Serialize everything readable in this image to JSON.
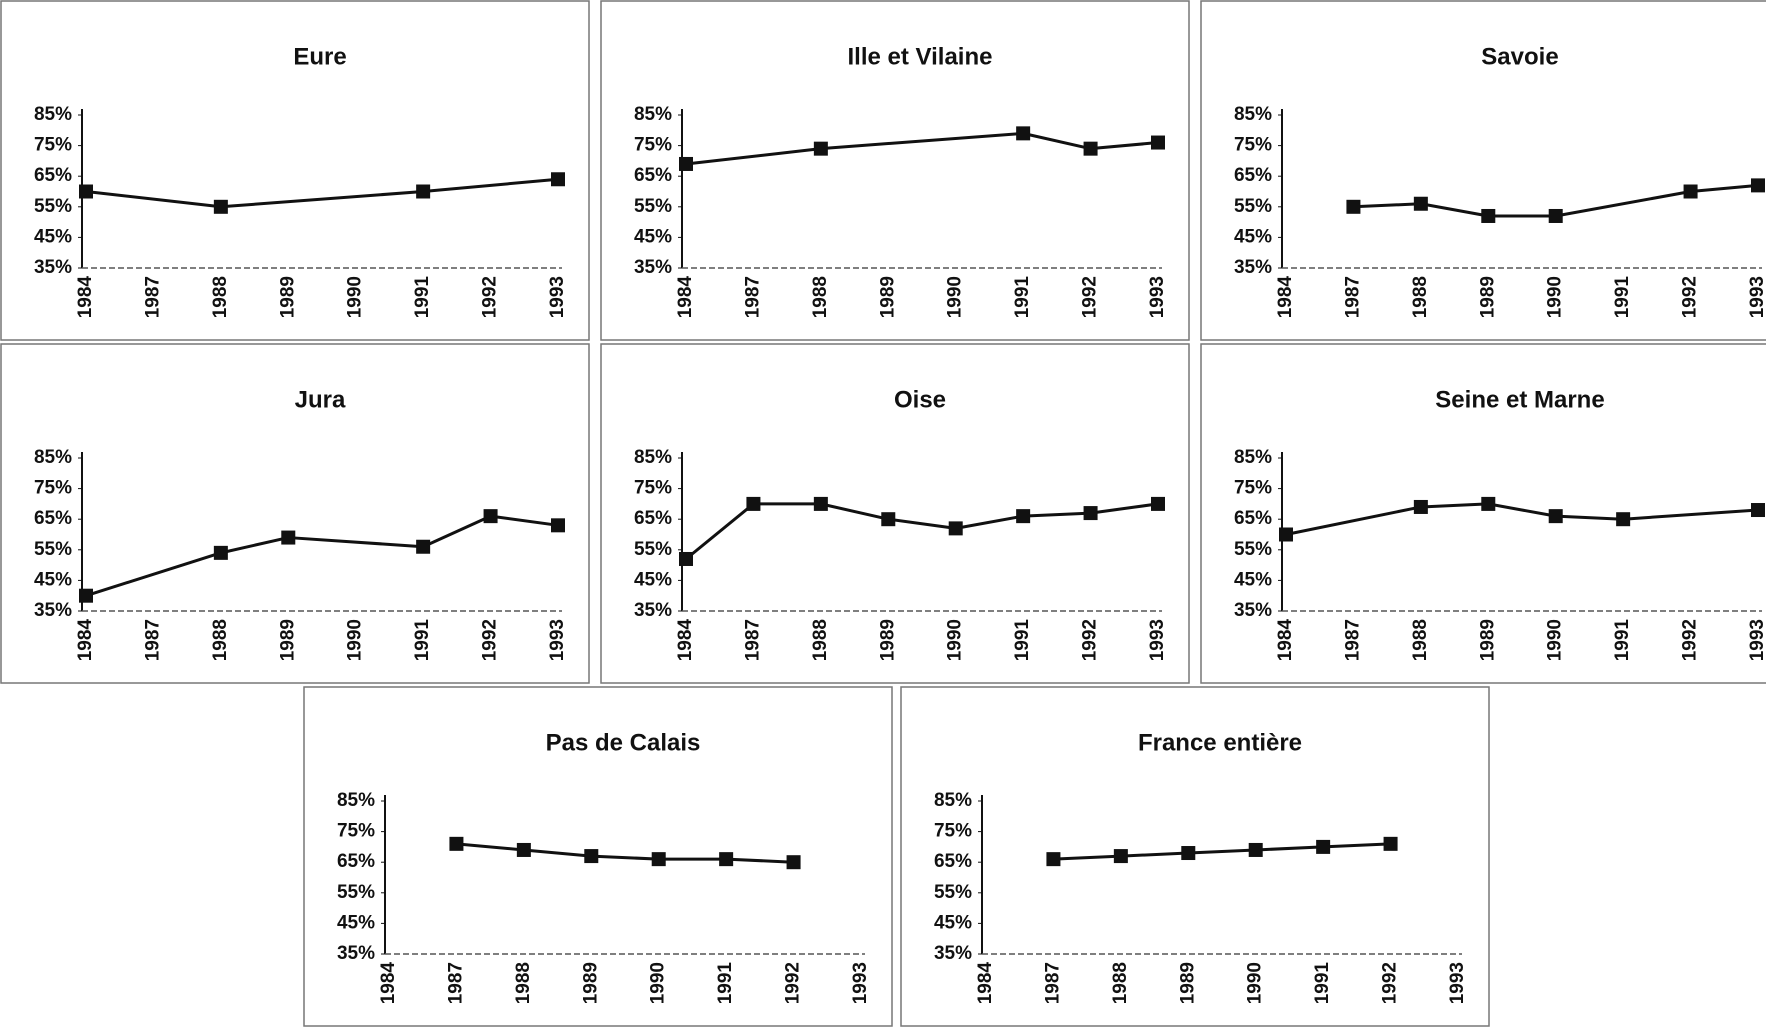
{
  "chart_data": [
    {
      "type": "line",
      "title": "Eure",
      "categories": [
        "1984",
        "1987",
        "1988",
        "1989",
        "1990",
        "1991",
        "1992",
        "1993"
      ],
      "series": [
        {
          "color": "#111111",
          "values": [
            60,
            null,
            55,
            null,
            null,
            60,
            null,
            64
          ]
        }
      ],
      "ylim": [
        35,
        85
      ],
      "yticks": [
        {
          "value": 35,
          "label": "35%"
        },
        {
          "value": 45,
          "label": "45%"
        },
        {
          "value": 55,
          "label": "55%"
        },
        {
          "value": 65,
          "label": "65%"
        },
        {
          "value": 75,
          "label": "75%"
        },
        {
          "value": 85,
          "label": "85%"
        }
      ]
    },
    {
      "type": "line",
      "title": "Ille et Vilaine",
      "categories": [
        "1984",
        "1987",
        "1988",
        "1989",
        "1990",
        "1991",
        "1992",
        "1993"
      ],
      "series": [
        {
          "color": "#111111",
          "values": [
            69,
            null,
            74,
            null,
            null,
            79,
            74,
            76
          ]
        }
      ],
      "ylim": [
        35,
        85
      ],
      "yticks": [
        {
          "value": 35,
          "label": "35%"
        },
        {
          "value": 45,
          "label": "45%"
        },
        {
          "value": 55,
          "label": "55%"
        },
        {
          "value": 65,
          "label": "65%"
        },
        {
          "value": 75,
          "label": "75%"
        },
        {
          "value": 85,
          "label": "85%"
        }
      ]
    },
    {
      "type": "line",
      "title": "Savoie",
      "categories": [
        "1984",
        "1987",
        "1988",
        "1989",
        "1990",
        "1991",
        "1992",
        "1993"
      ],
      "series": [
        {
          "color": "#111111",
          "values": [
            null,
            55,
            56,
            52,
            52,
            null,
            60,
            62
          ]
        }
      ],
      "ylim": [
        35,
        85
      ],
      "yticks": [
        {
          "value": 35,
          "label": "35%"
        },
        {
          "value": 45,
          "label": "45%"
        },
        {
          "value": 55,
          "label": "55%"
        },
        {
          "value": 65,
          "label": "65%"
        },
        {
          "value": 75,
          "label": "75%"
        },
        {
          "value": 85,
          "label": "85%"
        }
      ]
    },
    {
      "type": "line",
      "title": "Jura",
      "categories": [
        "1984",
        "1987",
        "1988",
        "1989",
        "1990",
        "1991",
        "1992",
        "1993"
      ],
      "series": [
        {
          "color": "#111111",
          "values": [
            40,
            null,
            54,
            59,
            null,
            56,
            66,
            63
          ]
        }
      ],
      "ylim": [
        35,
        85
      ],
      "yticks": [
        {
          "value": 35,
          "label": "35%"
        },
        {
          "value": 45,
          "label": "45%"
        },
        {
          "value": 55,
          "label": "55%"
        },
        {
          "value": 65,
          "label": "65%"
        },
        {
          "value": 75,
          "label": "75%"
        },
        {
          "value": 85,
          "label": "85%"
        }
      ]
    },
    {
      "type": "line",
      "title": "Oise",
      "categories": [
        "1984",
        "1987",
        "1988",
        "1989",
        "1990",
        "1991",
        "1992",
        "1993"
      ],
      "series": [
        {
          "color": "#111111",
          "values": [
            52,
            70,
            70,
            65,
            62,
            66,
            67,
            70
          ]
        }
      ],
      "ylim": [
        35,
        85
      ],
      "yticks": [
        {
          "value": 35,
          "label": "35%"
        },
        {
          "value": 45,
          "label": "45%"
        },
        {
          "value": 55,
          "label": "55%"
        },
        {
          "value": 65,
          "label": "65%"
        },
        {
          "value": 75,
          "label": "75%"
        },
        {
          "value": 85,
          "label": "85%"
        }
      ]
    },
    {
      "type": "line",
      "title": "Seine et Marne",
      "categories": [
        "1984",
        "1987",
        "1988",
        "1989",
        "1990",
        "1991",
        "1992",
        "1993"
      ],
      "series": [
        {
          "color": "#111111",
          "values": [
            60,
            null,
            69,
            70,
            66,
            65,
            null,
            68
          ]
        }
      ],
      "ylim": [
        35,
        85
      ],
      "yticks": [
        {
          "value": 35,
          "label": "35%"
        },
        {
          "value": 45,
          "label": "45%"
        },
        {
          "value": 55,
          "label": "55%"
        },
        {
          "value": 65,
          "label": "65%"
        },
        {
          "value": 75,
          "label": "75%"
        },
        {
          "value": 85,
          "label": "85%"
        }
      ]
    },
    {
      "type": "line",
      "title": "Pas de Calais",
      "categories": [
        "1984",
        "1987",
        "1988",
        "1989",
        "1990",
        "1991",
        "1992",
        "1993"
      ],
      "series": [
        {
          "color": "#111111",
          "values": [
            null,
            71,
            69,
            67,
            66,
            66,
            65,
            null
          ]
        }
      ],
      "ylim": [
        35,
        85
      ],
      "yticks": [
        {
          "value": 35,
          "label": "35%"
        },
        {
          "value": 45,
          "label": "45%"
        },
        {
          "value": 55,
          "label": "55%"
        },
        {
          "value": 65,
          "label": "65%"
        },
        {
          "value": 75,
          "label": "75%"
        },
        {
          "value": 85,
          "label": "85%"
        }
      ]
    },
    {
      "type": "line",
      "title": "France entière",
      "categories": [
        "1984",
        "1987",
        "1988",
        "1989",
        "1990",
        "1991",
        "1992",
        "1993"
      ],
      "series": [
        {
          "color": "#111111",
          "values": [
            null,
            66,
            67,
            68,
            69,
            70,
            71,
            null
          ]
        }
      ],
      "ylim": [
        35,
        85
      ],
      "yticks": [
        {
          "value": 35,
          "label": "35%"
        },
        {
          "value": 45,
          "label": "45%"
        },
        {
          "value": 55,
          "label": "55%"
        },
        {
          "value": 65,
          "label": "65%"
        },
        {
          "value": 75,
          "label": "75%"
        },
        {
          "value": 85,
          "label": "85%"
        }
      ]
    }
  ]
}
